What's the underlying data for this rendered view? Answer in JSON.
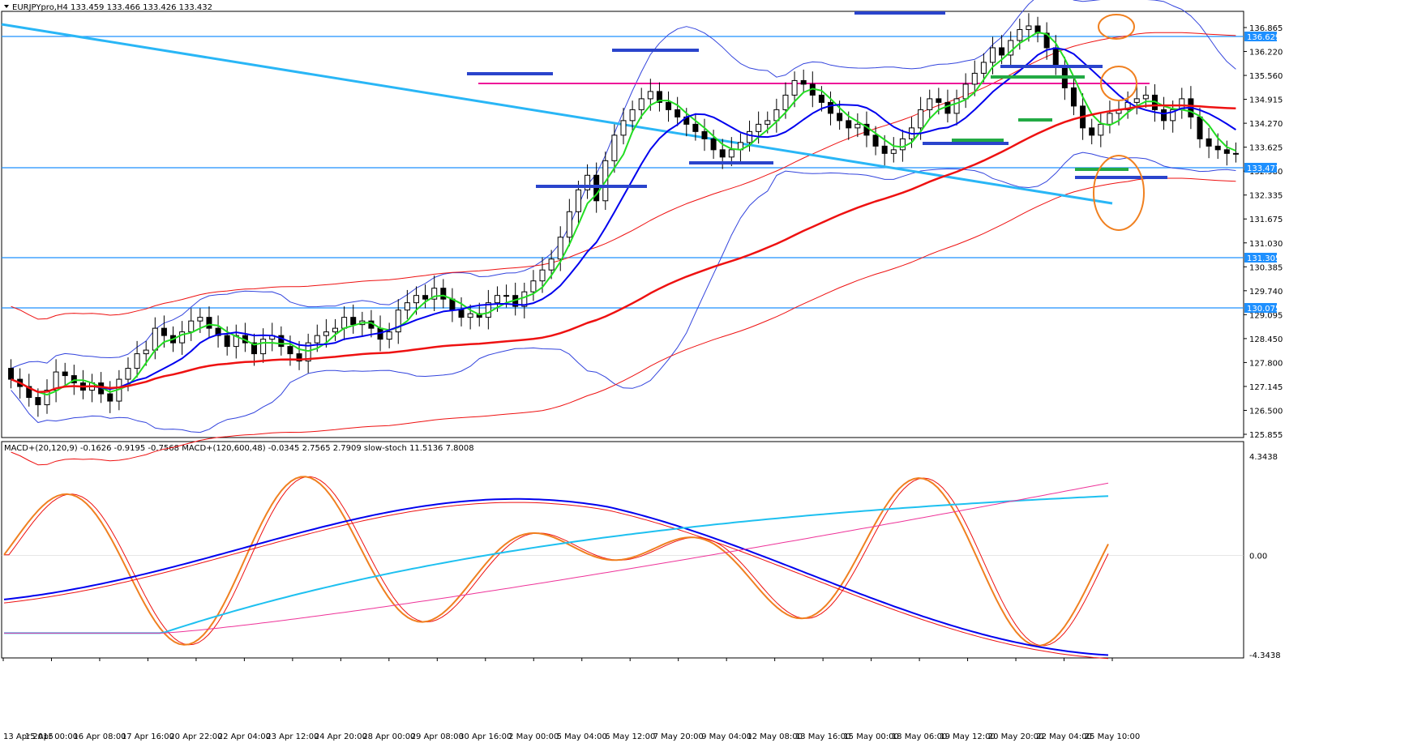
{
  "header": {
    "symbol_line": "EURJPYpro,H4  133.459 133.466 133.426 133.432",
    "indicator_line": "MACD+(20,120,9) -0.1626 -0.9195 -0.7568  MACD+(120,600,48) -0.0345 2.7565 2.7909  slow-stoch 11.5136 7.8008"
  },
  "colors": {
    "background": "#ffffff",
    "candle_up": "#ffffff",
    "candle_down": "#000000",
    "hline": "#1e90ff",
    "trendline": "#29b6f6",
    "ema_fast": "#22dd22",
    "ema_mid": "#0000ee",
    "ema_slow": "#ee1111",
    "bollinger": "#3344dd",
    "envelope": "#ee1111",
    "magenta": "#ee1199",
    "zone_blue": "#2a44cc",
    "zone_green": "#22aa44",
    "circle": "#f08020",
    "macd_fast": "#0000ee",
    "macd_fast_signal": "#ee1111",
    "macd_slow": "#1ec0f0",
    "macd_slow_signal": "#ee3399",
    "stoch_main": "#f08020",
    "stoch_signal": "#ee1111"
  },
  "chart_data": [
    {
      "type": "candlestick",
      "symbol": "EURJPYpro",
      "timeframe": "H4",
      "ylim": [
        125.6,
        137.3
      ],
      "y_ticks": [
        "136.865",
        "136.220",
        "135.560",
        "134.915",
        "134.270",
        "133.625",
        "132.980",
        "132.335",
        "131.675",
        "131.030",
        "130.385",
        "129.740",
        "129.095",
        "128.450",
        "127.800",
        "127.145",
        "126.500",
        "125.855"
      ],
      "price_tags": [
        "136.629",
        "133.477",
        "131.305",
        "130.075"
      ],
      "x_labels": [
        "13 Apr 2015",
        "15 Apr 00:00",
        "16 Apr 08:00",
        "17 Apr 16:00",
        "20 Apr 22:00",
        "22 Apr 04:00",
        "23 Apr 12:00",
        "24 Apr 20:00",
        "28 Apr 00:00",
        "29 Apr 08:00",
        "30 Apr 16:00",
        "2 May 00:00",
        "5 May 04:00",
        "6 May 12:00",
        "7 May 20:00",
        "9 May 04:00",
        "12 May 08:00",
        "13 May 16:00",
        "15 May 00:00",
        "18 May 06:00",
        "19 May 12:00",
        "20 May 20:00",
        "22 May 04:00",
        "25 May 10:00"
      ],
      "closes": [
        127.2,
        127.0,
        126.7,
        126.5,
        126.9,
        127.4,
        127.3,
        127.1,
        126.9,
        127.1,
        126.8,
        126.6,
        127.2,
        127.5,
        127.9,
        128.0,
        128.6,
        128.4,
        128.2,
        128.5,
        128.8,
        128.9,
        128.6,
        128.4,
        128.1,
        128.4,
        128.2,
        127.9,
        128.3,
        128.4,
        128.1,
        127.9,
        127.7,
        128.2,
        128.4,
        128.5,
        128.6,
        128.9,
        128.7,
        128.8,
        128.6,
        128.3,
        128.5,
        129.1,
        129.3,
        129.5,
        129.4,
        129.7,
        129.4,
        129.1,
        128.9,
        129.0,
        128.9,
        129.3,
        129.5,
        129.5,
        129.2,
        129.6,
        129.9,
        130.2,
        130.5,
        131.1,
        131.8,
        132.4,
        132.8,
        132.1,
        133.2,
        133.9,
        134.3,
        134.6,
        134.9,
        135.1,
        134.8,
        134.6,
        134.4,
        134.2,
        134.0,
        133.8,
        133.5,
        133.3,
        133.5,
        133.7,
        134.0,
        134.2,
        134.3,
        134.6,
        135.0,
        135.4,
        135.3,
        135.0,
        134.8,
        134.5,
        134.3,
        134.1,
        134.2,
        133.9,
        133.6,
        133.4,
        133.5,
        133.8,
        134.1,
        134.6,
        134.9,
        134.8,
        134.5,
        134.9,
        135.3,
        135.6,
        135.9,
        136.3,
        136.1,
        136.5,
        136.8,
        136.9,
        136.7,
        136.3,
        135.8,
        135.2,
        134.7,
        134.1,
        133.9,
        134.2,
        134.5,
        134.6,
        134.8,
        134.9,
        135.0,
        134.6,
        134.3,
        134.6,
        134.9,
        134.4,
        133.8,
        133.6,
        133.5,
        133.4,
        133.4
      ]
    },
    {
      "type": "line",
      "indicators": [
        "MACD+(20,120,9)",
        "MACD+(120,600,48)",
        "slow-stoch"
      ],
      "y_ticks": [
        "4.3438",
        "0.00",
        "-4.3438"
      ],
      "ylim": [
        -4.3438,
        4.3438
      ]
    }
  ]
}
